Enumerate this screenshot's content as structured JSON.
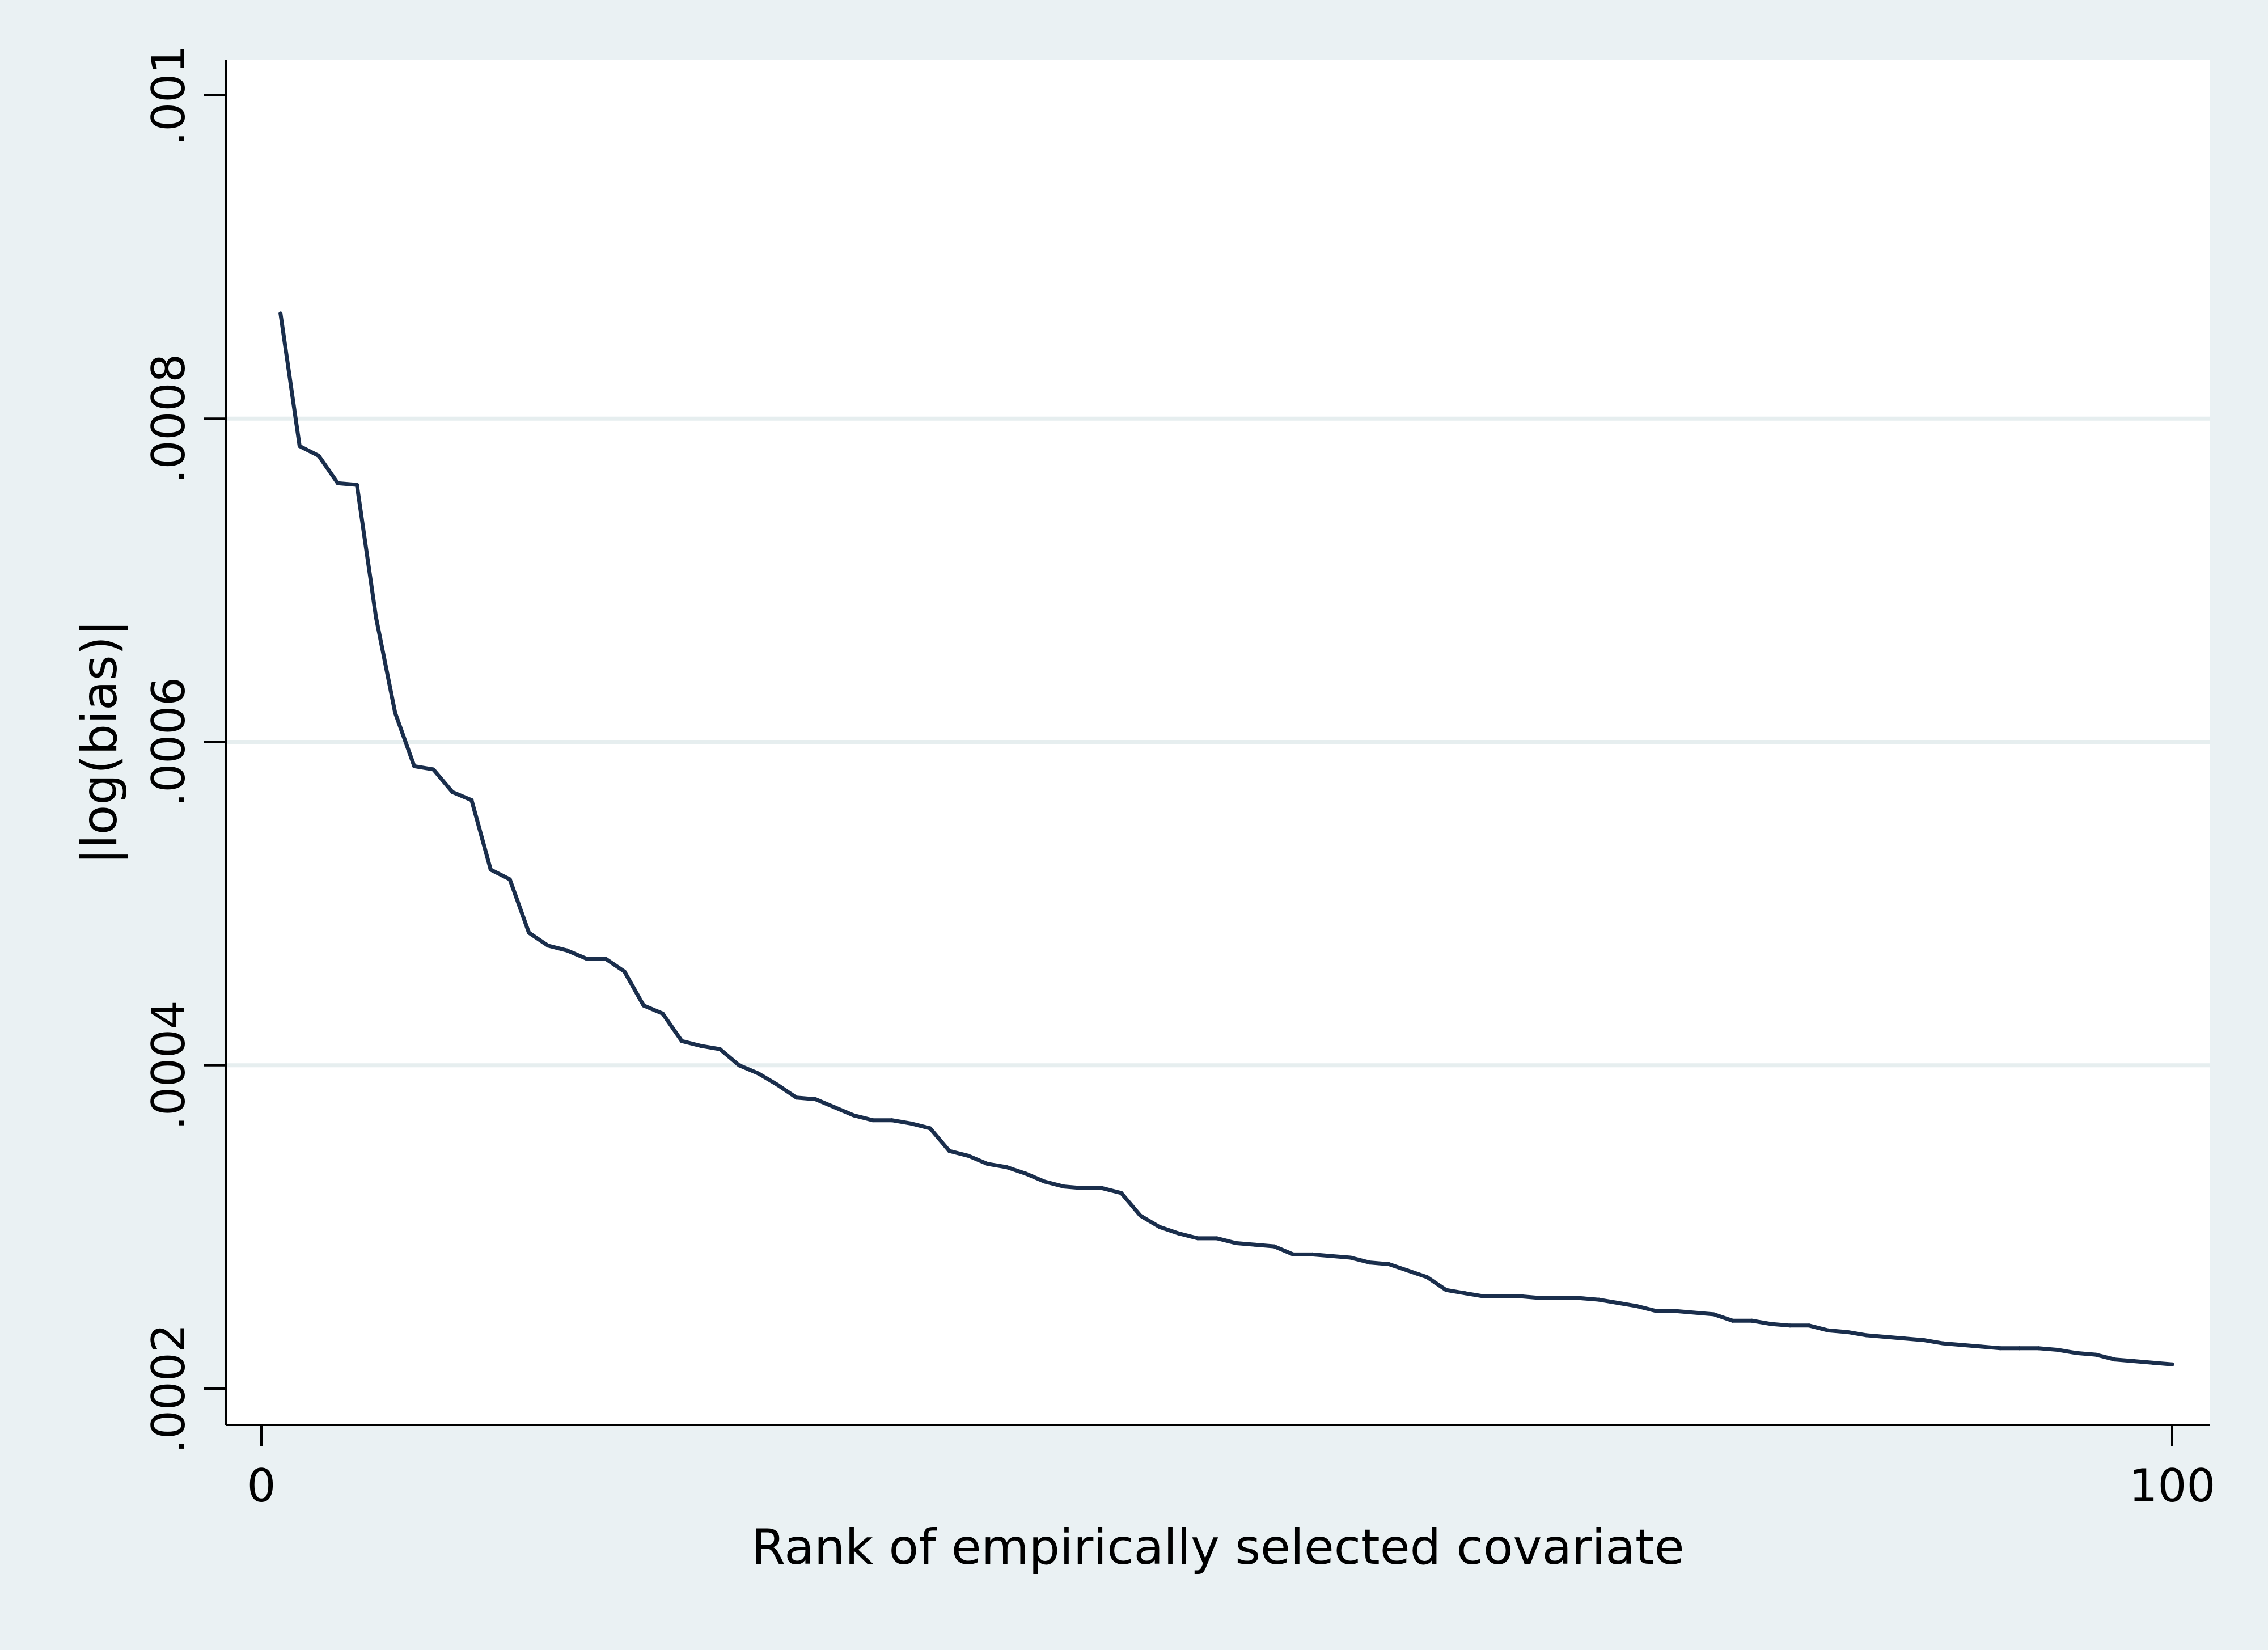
{
  "chart_data": {
    "type": "line",
    "title": "",
    "xlabel": "Rank of empirically selected covariate",
    "ylabel": "|log(bias)|",
    "xlim": [
      0,
      100
    ],
    "ylim": [
      0.0002,
      0.001
    ],
    "xticks": [
      {
        "value": 0,
        "label": "0"
      },
      {
        "value": 100,
        "label": "100"
      }
    ],
    "yticks": [
      {
        "value": 0.0002,
        "label": ".0002"
      },
      {
        "value": 0.0004,
        "label": ".0004"
      },
      {
        "value": 0.0006,
        "label": ".0006"
      },
      {
        "value": 0.0008,
        "label": ".0008"
      },
      {
        "value": 0.001,
        "label": ".001"
      }
    ],
    "grid": true,
    "legend": false,
    "line_color": "#1a2e4c",
    "series": [
      {
        "name": "|log(bias)|",
        "x": [
          1,
          2,
          3,
          4,
          5,
          6,
          7,
          8,
          9,
          10,
          11,
          12,
          13,
          14,
          15,
          16,
          17,
          18,
          19,
          20,
          21,
          22,
          23,
          24,
          25,
          26,
          27,
          28,
          29,
          30,
          31,
          32,
          33,
          34,
          35,
          36,
          37,
          38,
          39,
          40,
          41,
          42,
          43,
          44,
          45,
          46,
          47,
          48,
          49,
          50,
          51,
          52,
          53,
          54,
          55,
          56,
          57,
          58,
          59,
          60,
          61,
          62,
          63,
          64,
          65,
          66,
          67,
          68,
          69,
          70,
          71,
          72,
          73,
          74,
          75,
          76,
          77,
          78,
          79,
          80,
          81,
          82,
          83,
          84,
          85,
          86,
          87,
          88,
          89,
          90,
          91,
          92,
          93,
          94,
          95,
          96,
          97,
          98,
          99,
          100
        ],
        "values": [
          0.000865,
          0.000783,
          0.000777,
          0.00076,
          0.000759,
          0.000677,
          0.000618,
          0.000585,
          0.000583,
          0.000569,
          0.000564,
          0.000521,
          0.000515,
          0.000482,
          0.000474,
          0.000471,
          0.000466,
          0.000466,
          0.000458,
          0.000437,
          0.000432,
          0.000415,
          0.000412,
          0.00041,
          0.0004,
          0.000395,
          0.000388,
          0.00038,
          0.000379,
          0.000374,
          0.000369,
          0.000366,
          0.000366,
          0.000364,
          0.000361,
          0.000347,
          0.000344,
          0.000339,
          0.000337,
          0.000333,
          0.000328,
          0.000325,
          0.000324,
          0.000324,
          0.000321,
          0.000307,
          0.0003,
          0.000296,
          0.000293,
          0.000293,
          0.00029,
          0.000289,
          0.000288,
          0.000283,
          0.000283,
          0.000282,
          0.000281,
          0.000278,
          0.000277,
          0.000273,
          0.000269,
          0.000261,
          0.000259,
          0.000257,
          0.000257,
          0.000257,
          0.000256,
          0.000256,
          0.000256,
          0.000255,
          0.000253,
          0.000251,
          0.000248,
          0.000248,
          0.000247,
          0.000246,
          0.000242,
          0.000242,
          0.00024,
          0.000239,
          0.000239,
          0.000236,
          0.000235,
          0.000233,
          0.000232,
          0.000231,
          0.00023,
          0.000228,
          0.000227,
          0.000226,
          0.000225,
          0.000225,
          0.000225,
          0.000224,
          0.000222,
          0.000221,
          0.000218,
          0.000217,
          0.000216,
          0.000215
        ]
      }
    ]
  }
}
